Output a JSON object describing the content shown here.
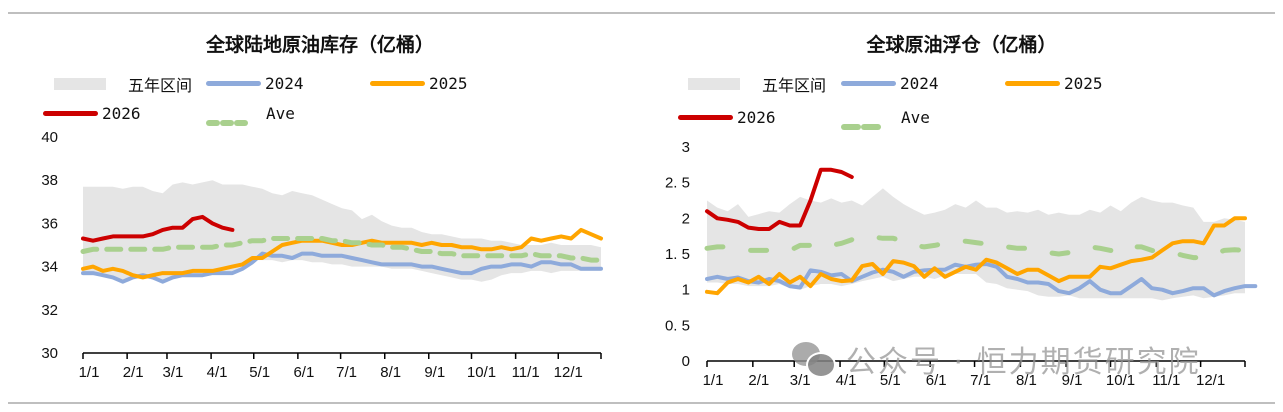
{
  "chart_data": [
    {
      "type": "line",
      "title": "全球陆地原油库存（亿桶）",
      "xlabel": "",
      "ylabel": "",
      "ylim": [
        30,
        40
      ],
      "yticks": [
        "30",
        "32",
        "34",
        "36",
        "38",
        "40"
      ],
      "ytick_values": [
        30,
        32,
        34,
        36,
        38,
        40
      ],
      "xticks": [
        "1/1",
        "2/1",
        "3/1",
        "4/1",
        "5/1",
        "6/1",
        "7/1",
        "8/1",
        "9/1",
        "10/1",
        "11/1",
        "12/1"
      ],
      "x_unit": "week of year (1-53)",
      "legend": [
        "五年区间",
        "2024",
        "2025",
        "2026",
        "Ave"
      ],
      "legend_position": "top",
      "range_band": {
        "name": "五年区间",
        "color": "#e5e5e5",
        "upper": [
          37.7,
          37.7,
          37.7,
          37.7,
          37.6,
          37.7,
          37.7,
          37.5,
          37.4,
          37.8,
          37.9,
          37.8,
          37.9,
          38.0,
          37.8,
          37.8,
          37.8,
          37.7,
          37.6,
          37.4,
          37.3,
          37.5,
          37.4,
          37.3,
          37.1,
          36.9,
          36.7,
          36.6,
          36.2,
          36.4,
          36.1,
          35.9,
          35.8,
          35.8,
          35.6,
          35.5,
          35.5,
          35.4,
          35.3,
          35.3,
          35.3,
          35.2,
          35.2,
          35.1,
          35.0,
          35.0,
          35.0,
          35.1,
          35.0,
          35.0,
          35.0,
          35.0,
          34.9
        ],
        "lower": [
          33.6,
          33.6,
          33.6,
          33.5,
          33.4,
          33.5,
          33.5,
          33.4,
          33.3,
          33.5,
          33.6,
          33.6,
          33.6,
          33.7,
          33.7,
          33.8,
          34.0,
          34.3,
          34.3,
          34.3,
          34.2,
          34.3,
          34.3,
          34.2,
          34.2,
          34.1,
          34.1,
          34.0,
          34.0,
          34.0,
          34.0,
          33.9,
          33.9,
          33.9,
          33.8,
          33.7,
          33.6,
          33.5,
          33.4,
          33.4,
          33.3,
          33.4,
          33.6,
          33.7,
          33.7,
          33.8,
          33.8,
          33.7,
          33.8,
          33.8,
          33.8,
          33.8,
          33.8
        ]
      },
      "series": [
        {
          "name": "2024",
          "color": "#8eaadb",
          "values": [
            33.7,
            33.7,
            33.6,
            33.5,
            33.3,
            33.5,
            33.6,
            33.5,
            33.3,
            33.5,
            33.6,
            33.6,
            33.6,
            33.7,
            33.7,
            33.7,
            33.9,
            34.2,
            34.6,
            34.5,
            34.5,
            34.4,
            34.6,
            34.6,
            34.5,
            34.5,
            34.5,
            34.4,
            34.3,
            34.2,
            34.1,
            34.1,
            34.1,
            34.1,
            34.0,
            34.0,
            33.9,
            33.8,
            33.7,
            33.7,
            33.9,
            34.0,
            34.0,
            34.1,
            34.1,
            34.0,
            34.2,
            34.2,
            34.1,
            34.1,
            33.9,
            33.9,
            33.9
          ]
        },
        {
          "name": "2025",
          "color": "#ffa500",
          "values": [
            33.9,
            34.0,
            33.8,
            33.9,
            33.8,
            33.6,
            33.5,
            33.6,
            33.7,
            33.7,
            33.7,
            33.8,
            33.8,
            33.8,
            33.9,
            34.0,
            34.1,
            34.4,
            34.4,
            34.7,
            35.0,
            35.1,
            35.2,
            35.2,
            35.2,
            35.1,
            35.0,
            35.0,
            35.1,
            35.2,
            35.1,
            35.1,
            35.1,
            35.1,
            35.0,
            35.1,
            35.0,
            35.0,
            34.9,
            34.9,
            34.8,
            34.8,
            34.9,
            34.8,
            34.9,
            35.3,
            35.2,
            35.3,
            35.4,
            35.3,
            35.7,
            35.5,
            35.3
          ]
        },
        {
          "name": "2026",
          "color": "#cc0000",
          "values": [
            35.3,
            35.2,
            35.3,
            35.4,
            35.4,
            35.4,
            35.4,
            35.5,
            35.7,
            35.8,
            35.8,
            36.2,
            36.3,
            36.0,
            35.8,
            35.7
          ]
        },
        {
          "name": "Ave",
          "color": "#a9d08e",
          "dashed": true,
          "values": [
            34.7,
            34.8,
            34.8,
            34.8,
            34.8,
            34.8,
            34.8,
            34.8,
            34.8,
            34.9,
            34.9,
            34.9,
            34.9,
            34.9,
            35.0,
            35.0,
            35.1,
            35.2,
            35.2,
            35.3,
            35.3,
            35.3,
            35.3,
            35.3,
            35.3,
            35.2,
            35.2,
            35.1,
            35.1,
            35.0,
            35.0,
            34.9,
            34.9,
            34.8,
            34.7,
            34.7,
            34.6,
            34.6,
            34.5,
            34.5,
            34.5,
            34.5,
            34.5,
            34.5,
            34.5,
            34.6,
            34.5,
            34.5,
            34.5,
            34.4,
            34.4,
            34.3,
            34.3
          ]
        }
      ]
    },
    {
      "type": "line",
      "title": "全球原油浮仓（亿桶）",
      "xlabel": "",
      "ylabel": "",
      "ylim": [
        0,
        3
      ],
      "yticks": [
        "0",
        "0. 5",
        "1",
        "1. 5",
        "2",
        "2. 5",
        "3"
      ],
      "ytick_values": [
        0,
        0.5,
        1,
        1.5,
        2,
        2.5,
        3
      ],
      "xticks": [
        "1/1",
        "2/1",
        "3/1",
        "4/1",
        "5/1",
        "6/1",
        "7/1",
        "8/1",
        "9/1",
        "10/1",
        "11/1",
        "12/1"
      ],
      "x_unit": "week of year (1-53)",
      "legend": [
        "五年区间",
        "2024",
        "2025",
        "2026",
        "Ave"
      ],
      "legend_position": "top",
      "range_band": {
        "name": "五年区间",
        "color": "#e5e5e5",
        "upper": [
          2.25,
          2.15,
          2.1,
          2.2,
          2.02,
          2.06,
          2.1,
          2.08,
          2.2,
          2.3,
          2.25,
          2.22,
          2.28,
          2.22,
          2.25,
          2.18,
          2.3,
          2.42,
          2.3,
          2.2,
          2.12,
          2.05,
          2.08,
          2.12,
          2.2,
          2.15,
          2.25,
          2.15,
          2.15,
          2.08,
          2.1,
          2.08,
          2.12,
          2.05,
          2.08,
          2.05,
          2.05,
          2.12,
          2.08,
          2.18,
          2.1,
          2.22,
          2.3,
          2.25,
          2.22,
          2.22,
          2.18,
          2.15,
          1.95,
          1.95,
          2.0,
          1.98,
          1.95
        ],
        "lower": [
          1.1,
          1.1,
          1.08,
          1.08,
          1.05,
          1.05,
          1.05,
          1.08,
          1.02,
          1.0,
          1.05,
          1.08,
          1.08,
          1.05,
          1.08,
          1.12,
          1.15,
          1.18,
          1.12,
          1.15,
          1.18,
          1.18,
          1.15,
          1.2,
          1.22,
          1.22,
          1.22,
          1.1,
          1.08,
          1.02,
          1.0,
          0.98,
          0.92,
          0.9,
          0.9,
          0.92,
          0.88,
          0.88,
          0.88,
          0.88,
          0.88,
          0.88,
          0.88,
          0.88,
          0.85,
          0.88,
          0.9,
          0.92,
          0.88,
          0.9,
          0.92,
          0.95,
          0.95
        ]
      },
      "series": [
        {
          "name": "2024",
          "color": "#8eaadb",
          "values": [
            1.15,
            1.18,
            1.15,
            1.17,
            1.12,
            1.1,
            1.15,
            1.12,
            1.05,
            1.03,
            1.27,
            1.25,
            1.2,
            1.22,
            1.12,
            1.18,
            1.24,
            1.28,
            1.25,
            1.18,
            1.25,
            1.27,
            1.28,
            1.28,
            1.35,
            1.32,
            1.35,
            1.36,
            1.32,
            1.18,
            1.15,
            1.1,
            1.1,
            1.08,
            0.98,
            0.95,
            1.02,
            1.12,
            1.0,
            0.95,
            0.95,
            1.05,
            1.15,
            1.02,
            1.0,
            0.95,
            0.98,
            1.02,
            1.02,
            0.92,
            0.98,
            1.02,
            1.05,
            1.05
          ]
        },
        {
          "name": "2025",
          "color": "#ffa500",
          "values": [
            0.97,
            0.95,
            1.1,
            1.15,
            1.1,
            1.18,
            1.08,
            1.22,
            1.1,
            1.18,
            1.05,
            1.22,
            1.15,
            1.12,
            1.13,
            1.33,
            1.36,
            1.22,
            1.4,
            1.38,
            1.33,
            1.18,
            1.3,
            1.18,
            1.25,
            1.32,
            1.28,
            1.42,
            1.38,
            1.3,
            1.22,
            1.28,
            1.28,
            1.2,
            1.12,
            1.18,
            1.18,
            1.18,
            1.32,
            1.3,
            1.35,
            1.4,
            1.42,
            1.45,
            1.55,
            1.65,
            1.68,
            1.68,
            1.65,
            1.9,
            1.9,
            2.0,
            2.0
          ]
        },
        {
          "name": "2026",
          "color": "#cc0000",
          "values": [
            2.1,
            2.0,
            1.98,
            1.95,
            1.87,
            1.85,
            1.85,
            1.95,
            1.9,
            1.9,
            2.25,
            2.68,
            2.68,
            2.65,
            2.58
          ]
        },
        {
          "name": "Ave",
          "color": "#a9d08e",
          "dashed": true,
          "values": [
            1.58,
            1.6,
            1.6,
            1.58,
            1.55,
            1.55,
            1.55,
            1.56,
            1.55,
            1.62,
            1.62,
            1.58,
            1.62,
            1.65,
            1.7,
            1.75,
            1.74,
            1.72,
            1.72,
            1.68,
            1.62,
            1.6,
            1.62,
            1.65,
            1.68,
            1.68,
            1.66,
            1.64,
            1.6,
            1.6,
            1.58,
            1.58,
            1.55,
            1.52,
            1.5,
            1.52,
            1.56,
            1.6,
            1.58,
            1.55,
            1.52,
            1.6,
            1.6,
            1.55,
            1.52,
            1.52,
            1.48,
            1.45,
            1.45,
            1.5,
            1.55,
            1.56,
            1.55
          ]
        }
      ]
    }
  ],
  "watermark": "公众号 · 恒力期货研究院"
}
